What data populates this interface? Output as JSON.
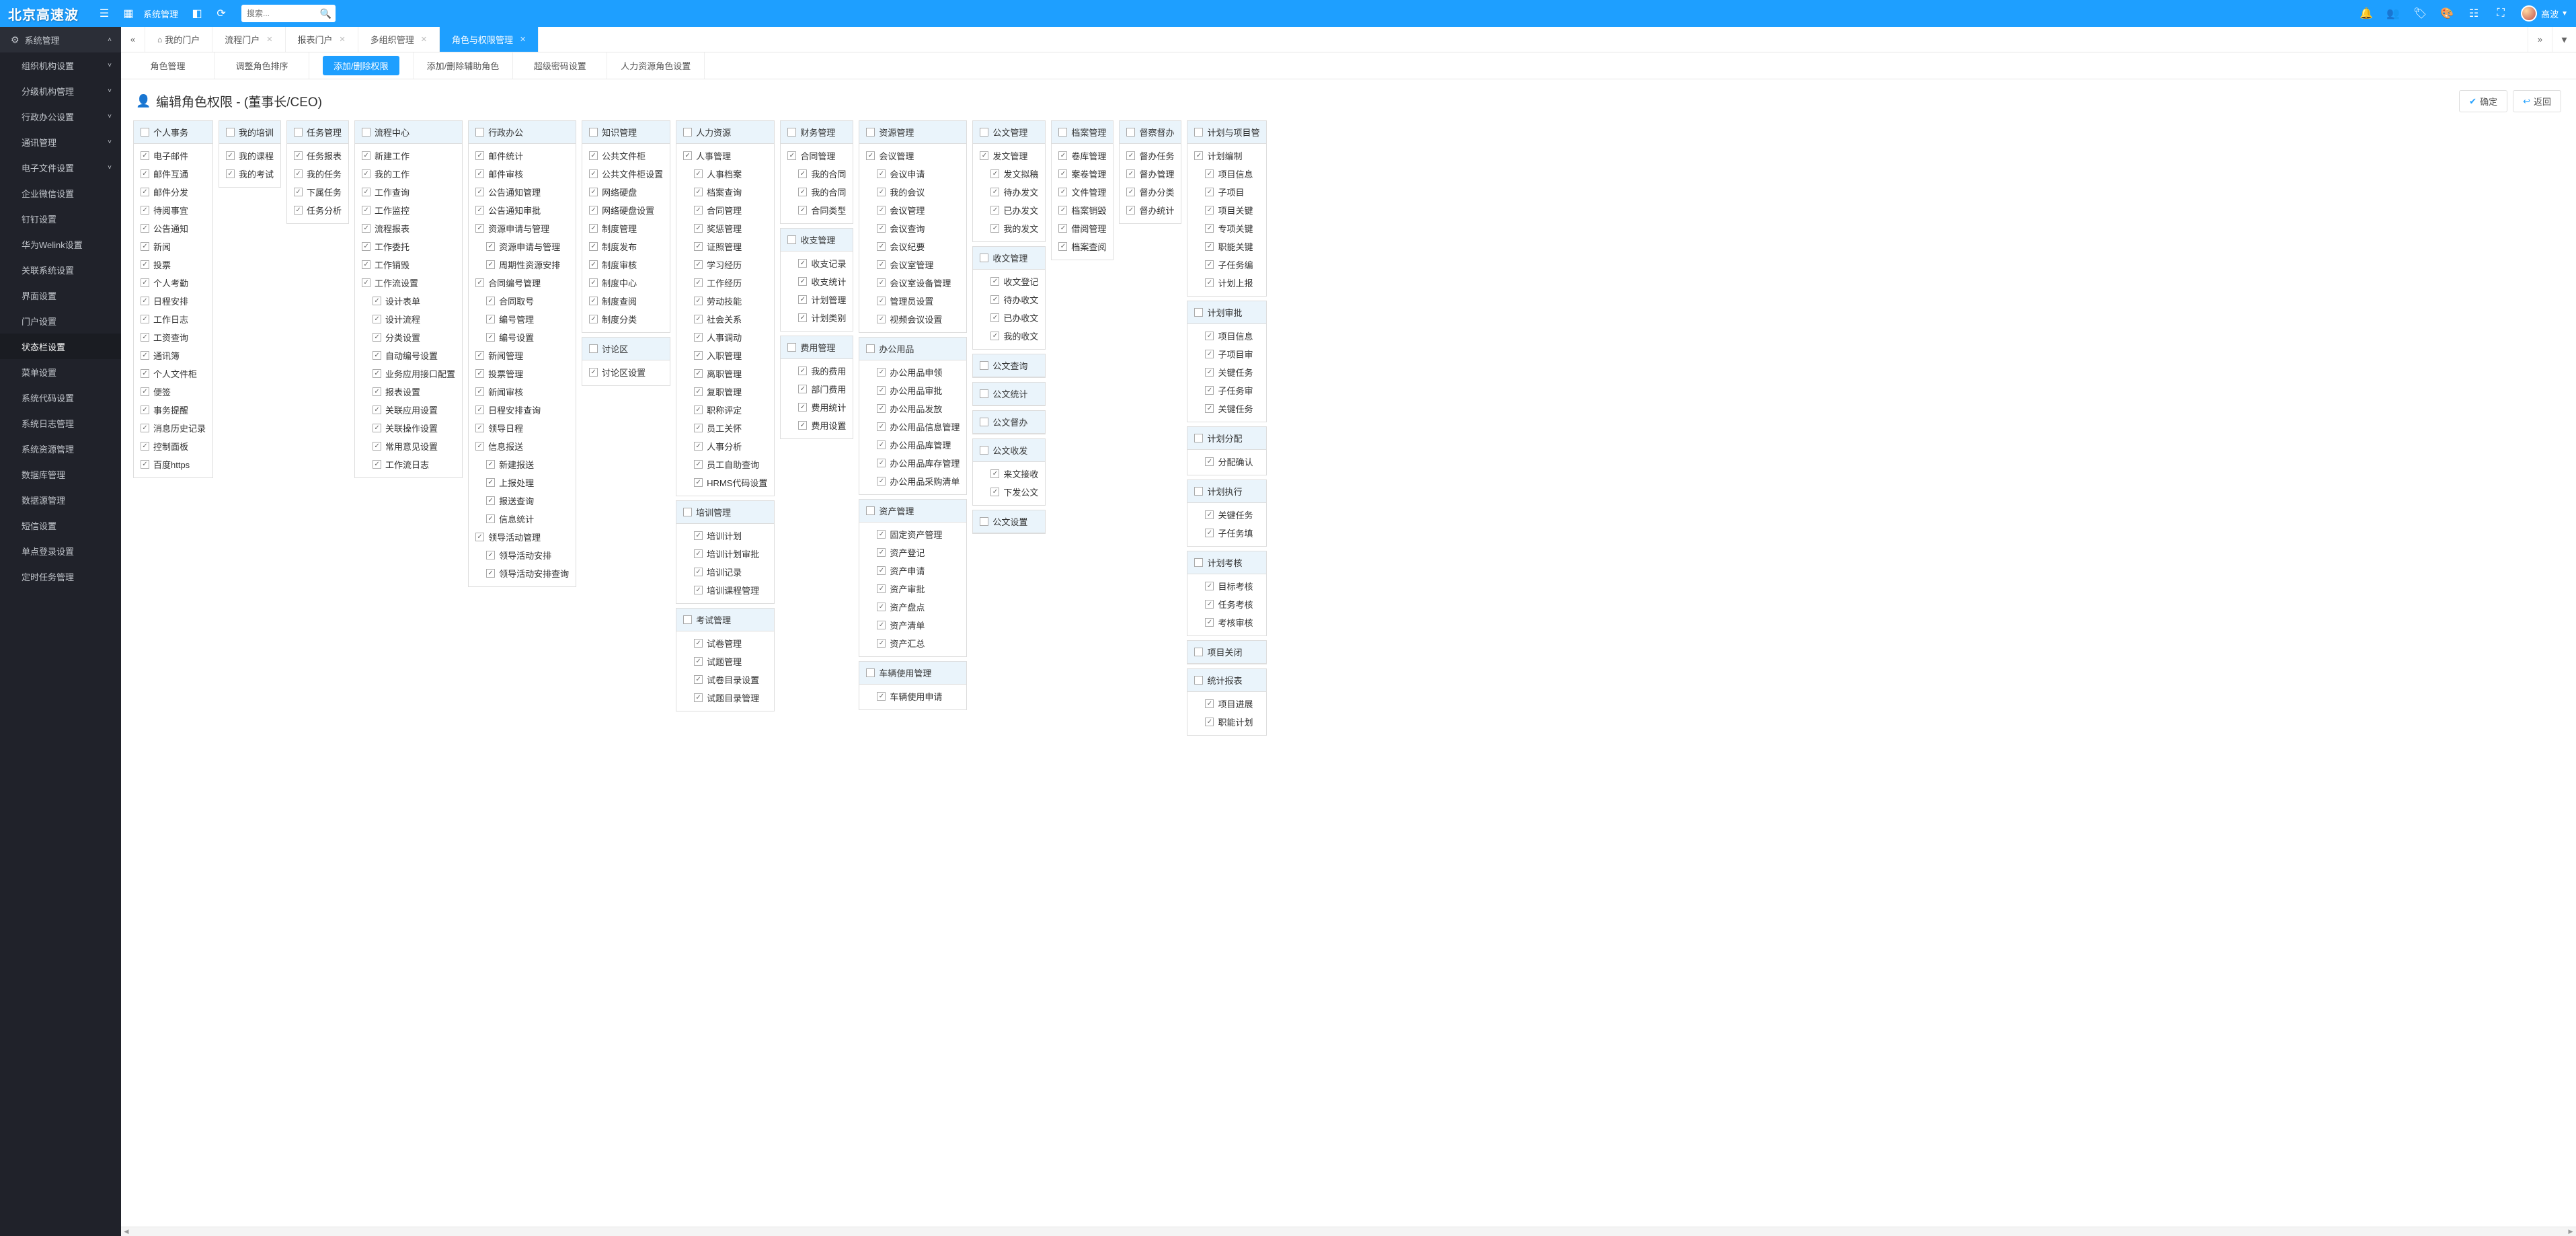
{
  "topbar": {
    "logo": "北京高速波",
    "menu_label": "系统管理",
    "search_placeholder": "搜索...",
    "user_name": "高波"
  },
  "sidebar": {
    "root": {
      "label": "系统管理"
    },
    "items": [
      {
        "label": "组织机构设置",
        "chev": true
      },
      {
        "label": "分级机构管理",
        "chev": true
      },
      {
        "label": "行政办公设置",
        "chev": true
      },
      {
        "label": "通讯管理",
        "chev": true
      },
      {
        "label": "电子文件设置",
        "chev": true
      },
      {
        "label": "企业微信设置",
        "chev": false
      },
      {
        "label": "钉钉设置",
        "chev": false
      },
      {
        "label": "华为Welink设置",
        "chev": false
      },
      {
        "label": "关联系统设置",
        "chev": false
      },
      {
        "label": "界面设置",
        "chev": false
      },
      {
        "label": "门户设置",
        "chev": false
      },
      {
        "label": "状态栏设置",
        "chev": false,
        "active": true
      },
      {
        "label": "菜单设置",
        "chev": false
      },
      {
        "label": "系统代码设置",
        "chev": false
      },
      {
        "label": "系统日志管理",
        "chev": false
      },
      {
        "label": "系统资源管理",
        "chev": false
      },
      {
        "label": "数据库管理",
        "chev": false
      },
      {
        "label": "数据源管理",
        "chev": false
      },
      {
        "label": "短信设置",
        "chev": false
      },
      {
        "label": "单点登录设置",
        "chev": false
      },
      {
        "label": "定时任务管理",
        "chev": false
      }
    ]
  },
  "tabs": [
    {
      "label": "我的门户",
      "home": true,
      "closable": false
    },
    {
      "label": "流程门户",
      "closable": true
    },
    {
      "label": "报表门户",
      "closable": true
    },
    {
      "label": "多组织管理",
      "closable": true
    },
    {
      "label": "角色与权限管理",
      "closable": true,
      "active": true
    }
  ],
  "subtabs": [
    {
      "label": "角色管理"
    },
    {
      "label": "调整角色排序"
    },
    {
      "label": "添加/删除权限",
      "active": true
    },
    {
      "label": "添加/删除辅助角色"
    },
    {
      "label": "超级密码设置"
    },
    {
      "label": "人力资源角色设置"
    }
  ],
  "page": {
    "title": "编辑角色权限 - (董事长/CEO)",
    "ok": "确定",
    "back": "返回"
  },
  "cols": [
    [
      {
        "title": "个人事务",
        "head_checked": false,
        "items": [
          [
            "电子邮件",
            0
          ],
          [
            "邮件互通",
            0
          ],
          [
            "邮件分发",
            0
          ],
          [
            "待阅事宜",
            0
          ],
          [
            "公告通知",
            0
          ],
          [
            "新闻",
            0
          ],
          [
            "投票",
            0
          ],
          [
            "个人考勤",
            0
          ],
          [
            "日程安排",
            0
          ],
          [
            "工作日志",
            0
          ],
          [
            "工资查询",
            0
          ],
          [
            "通讯簿",
            0
          ],
          [
            "个人文件柜",
            0
          ],
          [
            "便签",
            0
          ],
          [
            "事务提醒",
            0
          ],
          [
            "消息历史记录",
            0
          ],
          [
            "控制面板",
            0
          ],
          [
            "百度https",
            0
          ]
        ]
      }
    ],
    [
      {
        "title": "我的培训",
        "head_checked": false,
        "items": [
          [
            "我的课程",
            0
          ],
          [
            "我的考试",
            0
          ]
        ]
      }
    ],
    [
      {
        "title": "任务管理",
        "head_checked": false,
        "items": [
          [
            "任务报表",
            0
          ],
          [
            "我的任务",
            0
          ],
          [
            "下属任务",
            0
          ],
          [
            "任务分析",
            0
          ]
        ]
      }
    ],
    [
      {
        "title": "流程中心",
        "head_checked": false,
        "items": [
          [
            "新建工作",
            0
          ],
          [
            "我的工作",
            0
          ],
          [
            "工作查询",
            0
          ],
          [
            "工作监控",
            0
          ],
          [
            "流程报表",
            0
          ],
          [
            "工作委托",
            0
          ],
          [
            "工作销毁",
            0
          ],
          [
            "工作流设置",
            0
          ],
          [
            "设计表单",
            1
          ],
          [
            "设计流程",
            1
          ],
          [
            "分类设置",
            1
          ],
          [
            "自动编号设置",
            1
          ],
          [
            "业务应用接口配置",
            1
          ],
          [
            "报表设置",
            1
          ],
          [
            "关联应用设置",
            1
          ],
          [
            "关联操作设置",
            1
          ],
          [
            "常用意见设置",
            1
          ],
          [
            "工作流日志",
            1
          ]
        ]
      }
    ],
    [
      {
        "title": "行政办公",
        "head_checked": false,
        "items": [
          [
            "邮件统计",
            0
          ],
          [
            "邮件审核",
            0
          ],
          [
            "公告通知管理",
            0
          ],
          [
            "公告通知审批",
            0
          ],
          [
            "资源申请与管理",
            0
          ],
          [
            "资源申请与管理",
            1
          ],
          [
            "周期性资源安排",
            1
          ],
          [
            "合同编号管理",
            0
          ],
          [
            "合同取号",
            1
          ],
          [
            "编号管理",
            1
          ],
          [
            "编号设置",
            1
          ],
          [
            "新闻管理",
            0
          ],
          [
            "投票管理",
            0
          ],
          [
            "新闻审核",
            0
          ],
          [
            "日程安排查询",
            0
          ],
          [
            "领导日程",
            0
          ],
          [
            "信息报送",
            0
          ],
          [
            "新建报送",
            1
          ],
          [
            "上报处理",
            1
          ],
          [
            "报送查询",
            1
          ],
          [
            "信息统计",
            1
          ],
          [
            "领导活动管理",
            0
          ],
          [
            "领导活动安排",
            1
          ],
          [
            "领导活动安排查询",
            1
          ]
        ]
      }
    ],
    [
      {
        "title": "知识管理",
        "head_checked": false,
        "items": [
          [
            "公共文件柜",
            0
          ],
          [
            "公共文件柜设置",
            0
          ],
          [
            "网络硬盘",
            0
          ],
          [
            "网络硬盘设置",
            0
          ],
          [
            "制度管理",
            0
          ],
          [
            "制度发布",
            0
          ],
          [
            "制度审核",
            0
          ],
          [
            "制度中心",
            0
          ],
          [
            "制度查阅",
            0
          ],
          [
            "制度分类",
            0
          ]
        ]
      },
      {
        "title": "讨论区",
        "head_checked": false,
        "items": [
          [
            "讨论区设置",
            0
          ]
        ]
      }
    ],
    [
      {
        "title": "人力资源",
        "head_checked": false,
        "items": [
          [
            "人事管理",
            0
          ],
          [
            "人事档案",
            1
          ],
          [
            "档案查询",
            1
          ],
          [
            "合同管理",
            1
          ],
          [
            "奖惩管理",
            1
          ],
          [
            "证照管理",
            1
          ],
          [
            "学习经历",
            1
          ],
          [
            "工作经历",
            1
          ],
          [
            "劳动技能",
            1
          ],
          [
            "社会关系",
            1
          ],
          [
            "人事调动",
            1
          ],
          [
            "入职管理",
            1
          ],
          [
            "离职管理",
            1
          ],
          [
            "复职管理",
            1
          ],
          [
            "职称评定",
            1
          ],
          [
            "员工关怀",
            1
          ],
          [
            "人事分析",
            1
          ],
          [
            "员工自助查询",
            1
          ],
          [
            "HRMS代码设置",
            1
          ]
        ]
      },
      {
        "title": "培训管理",
        "head_checked": false,
        "items": [
          [
            "培训计划",
            1
          ],
          [
            "培训计划审批",
            1
          ],
          [
            "培训记录",
            1
          ],
          [
            "培训课程管理",
            1
          ]
        ]
      },
      {
        "title": "考试管理",
        "head_checked": false,
        "items": [
          [
            "试卷管理",
            1
          ],
          [
            "试题管理",
            1
          ],
          [
            "试卷目录设置",
            1
          ],
          [
            "试题目录管理",
            1
          ]
        ]
      }
    ],
    [
      {
        "title": "财务管理",
        "head_checked": false,
        "items": [
          [
            "合同管理",
            0
          ],
          [
            "我的合同",
            1
          ],
          [
            "我的合同",
            1
          ],
          [
            "合同类型",
            1
          ]
        ]
      },
      {
        "title": "收支管理",
        "head_checked": false,
        "items": [
          [
            "收支记录",
            1
          ],
          [
            "收支统计",
            1
          ],
          [
            "计划管理",
            1
          ],
          [
            "计划类别",
            1
          ]
        ]
      },
      {
        "title": "费用管理",
        "head_checked": false,
        "items": [
          [
            "我的费用",
            1
          ],
          [
            "部门费用",
            1
          ],
          [
            "费用统计",
            1
          ],
          [
            "费用设置",
            1
          ]
        ]
      }
    ],
    [
      {
        "title": "资源管理",
        "head_checked": false,
        "items": [
          [
            "会议管理",
            0
          ],
          [
            "会议申请",
            1
          ],
          [
            "我的会议",
            1
          ],
          [
            "会议管理",
            1
          ],
          [
            "会议查询",
            1
          ],
          [
            "会议纪要",
            1
          ],
          [
            "会议室管理",
            1
          ],
          [
            "会议室设备管理",
            1
          ],
          [
            "管理员设置",
            1
          ],
          [
            "视频会议设置",
            1
          ]
        ]
      },
      {
        "title": "办公用品",
        "head_checked": false,
        "items": [
          [
            "办公用品申领",
            1
          ],
          [
            "办公用品审批",
            1
          ],
          [
            "办公用品发放",
            1
          ],
          [
            "办公用品信息管理",
            1
          ],
          [
            "办公用品库管理",
            1
          ],
          [
            "办公用品库存管理",
            1
          ],
          [
            "办公用品采购清单",
            1
          ]
        ]
      },
      {
        "title": "资产管理",
        "head_checked": false,
        "items": [
          [
            "固定资产管理",
            1
          ],
          [
            "资产登记",
            1
          ],
          [
            "资产申请",
            1
          ],
          [
            "资产审批",
            1
          ],
          [
            "资产盘点",
            1
          ],
          [
            "资产清单",
            1
          ],
          [
            "资产汇总",
            1
          ]
        ]
      },
      {
        "title": "车辆使用管理",
        "head_checked": false,
        "items": [
          [
            "车辆使用申请",
            1
          ]
        ]
      }
    ],
    [
      {
        "title": "公文管理",
        "head_checked": false,
        "items": [
          [
            "发文管理",
            0
          ],
          [
            "发文拟稿",
            1
          ],
          [
            "待办发文",
            1
          ],
          [
            "已办发文",
            1
          ],
          [
            "我的发文",
            1
          ]
        ]
      },
      {
        "title": "收文管理",
        "head_checked": false,
        "items": [
          [
            "收文登记",
            1
          ],
          [
            "待办收文",
            1
          ],
          [
            "已办收文",
            1
          ],
          [
            "我的收文",
            1
          ]
        ]
      },
      {
        "title": "公文查询",
        "head_checked": false,
        "items": []
      },
      {
        "title": "公文统计",
        "head_checked": false,
        "items": []
      },
      {
        "title": "公文督办",
        "head_checked": false,
        "items": []
      },
      {
        "title": "公文收发",
        "head_checked": false,
        "items": [
          [
            "来文接收",
            1
          ],
          [
            "下发公文",
            1
          ]
        ]
      },
      {
        "title": "公文设置",
        "head_checked": false,
        "items": []
      }
    ],
    [
      {
        "title": "档案管理",
        "head_checked": false,
        "items": [
          [
            "卷库管理",
            0
          ],
          [
            "案卷管理",
            0
          ],
          [
            "文件管理",
            0
          ],
          [
            "档案销毁",
            0
          ],
          [
            "借阅管理",
            0
          ],
          [
            "档案查阅",
            0
          ]
        ]
      }
    ],
    [
      {
        "title": "督察督办",
        "head_checked": false,
        "items": [
          [
            "督办任务",
            0
          ],
          [
            "督办管理",
            0
          ],
          [
            "督办分类",
            0
          ],
          [
            "督办统计",
            0
          ]
        ]
      }
    ],
    [
      {
        "title": "计划与项目管",
        "head_checked": false,
        "items": [
          [
            "计划编制",
            0
          ],
          [
            "项目信息",
            1
          ],
          [
            "子项目",
            1
          ],
          [
            "项目关键",
            1
          ],
          [
            "专项关键",
            1
          ],
          [
            "职能关键",
            1
          ],
          [
            "子任务编",
            1
          ],
          [
            "计划上报",
            1
          ]
        ]
      },
      {
        "title": "计划审批",
        "head_checked": false,
        "items": [
          [
            "项目信息",
            1
          ],
          [
            "子项目审",
            1
          ],
          [
            "关键任务",
            1
          ],
          [
            "子任务审",
            1
          ],
          [
            "关键任务",
            1
          ]
        ]
      },
      {
        "title": "计划分配",
        "head_checked": false,
        "items": [
          [
            "分配确认",
            1
          ]
        ]
      },
      {
        "title": "计划执行",
        "head_checked": false,
        "items": [
          [
            "关键任务",
            1
          ],
          [
            "子任务填",
            1
          ]
        ]
      },
      {
        "title": "计划考核",
        "head_checked": false,
        "items": [
          [
            "目标考核",
            1
          ],
          [
            "任务考核",
            1
          ],
          [
            "考核审核",
            1
          ]
        ]
      },
      {
        "title": "项目关闭",
        "head_checked": false,
        "items": []
      },
      {
        "title": "统计报表",
        "head_checked": false,
        "items": [
          [
            "项目进展",
            1
          ],
          [
            "职能计划",
            1
          ]
        ]
      }
    ]
  ]
}
